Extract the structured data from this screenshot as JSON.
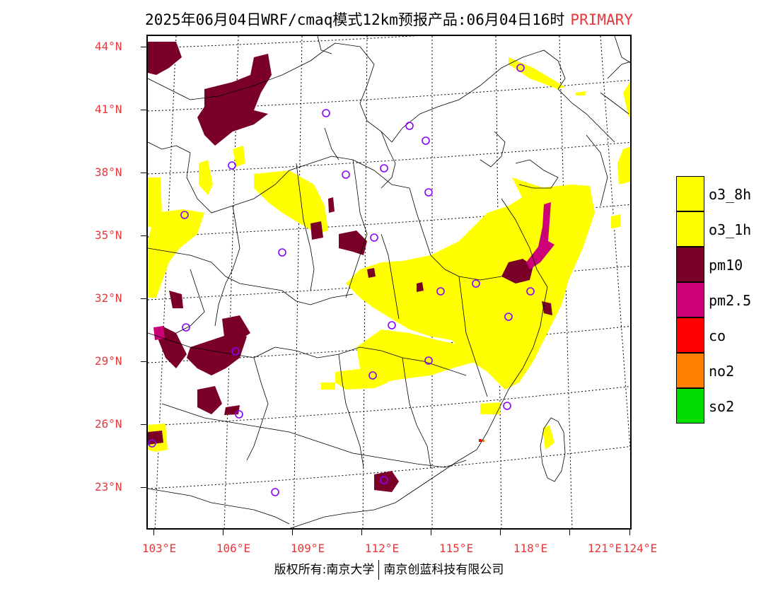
{
  "header": {
    "title": "2025年06月04日WRF/cmaq模式12km预报产品:06月04日16时",
    "badge": "PRIMARY",
    "badge_color": "#e8373a"
  },
  "axes": {
    "lat_labels": [
      "44°N",
      "41°N",
      "38°N",
      "35°N",
      "32°N",
      "29°N",
      "26°N",
      "23°N"
    ],
    "lon_labels": [
      "103°E",
      "106°E",
      "109°E",
      "112°E",
      "115°E",
      "118°E",
      "121°E",
      "124°E"
    ]
  },
  "legend": {
    "items": [
      {
        "label": "o3_8h",
        "color": "#ffff00"
      },
      {
        "label": "o3_1h",
        "color": "#ffff00"
      },
      {
        "label": "pm10",
        "color": "#7a0028"
      },
      {
        "label": "pm2.5",
        "color": "#cc0077"
      },
      {
        "label": "co",
        "color": "#ff0000"
      },
      {
        "label": "no2",
        "color": "#ff7f00"
      },
      {
        "label": "so2",
        "color": "#00dd00"
      }
    ]
  },
  "footer": {
    "left": "版权所有:南京大学",
    "right": "南京创蓝科技有限公司"
  }
}
